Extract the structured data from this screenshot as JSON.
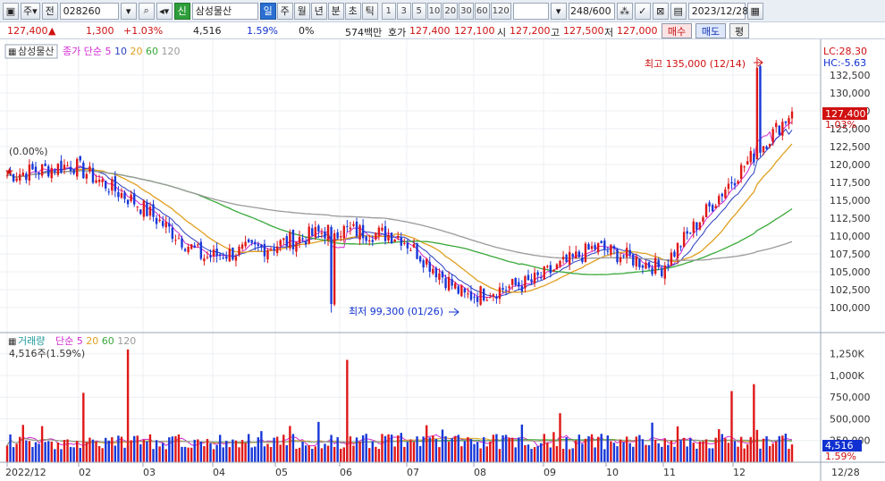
{
  "toolbar": {
    "chart_type": "주",
    "prev_label": "전",
    "stock_code": "028260",
    "new_badge": "신",
    "stock_name": "삼성물산",
    "periods": [
      "일",
      "주",
      "월",
      "년",
      "분",
      "초",
      "틱"
    ],
    "active_period": "일",
    "intervals": [
      "1",
      "3",
      "5",
      "10",
      "20",
      "30",
      "60",
      "120"
    ],
    "count": "248/600",
    "date": "2023/12/28"
  },
  "quote": {
    "price": "127,400",
    "change": "1,300",
    "change_pct": "+1.03%",
    "volume": "4,516",
    "volume_pct": "1.59%",
    "zero_pct": "0%",
    "trade_value": "574백만",
    "bid_label": "호가",
    "bid1": "127,400",
    "bid2": "127,100",
    "open_label": "시",
    "open": "127,200",
    "high_label": "고",
    "high": "127,500",
    "low_label": "저",
    "low": "127,000",
    "buy_label": "매수",
    "sell_label": "매도",
    "eval_label": "평"
  },
  "price_panel": {
    "name_tag": "삼성물산",
    "legend_prefix": "종가 단순",
    "ma_periods": [
      "5",
      "10",
      "20",
      "60",
      "120"
    ],
    "ma_colors": [
      "#d02bd0",
      "#2a3fc0",
      "#e0a020",
      "#38a838",
      "#9a9a9a"
    ],
    "start_marker": "(0.00%)",
    "high_annotation": "최고 135,000 (12/14)",
    "low_annotation": "최저 99,300 (01/26)",
    "lc": "LC:28.30",
    "hc": "HC:-5.63",
    "last_price": "127,400",
    "last_pct": "1.03%",
    "y_ticks": [
      "132,500",
      "130,000",
      "127,500",
      "125,000",
      "122,500",
      "120,000",
      "117,500",
      "115,000",
      "112,500",
      "110,000",
      "107,500",
      "105,000",
      "102,500",
      "100,000"
    ]
  },
  "volume_panel": {
    "title": "거래량",
    "legend_prefix": "단순",
    "ma_periods": [
      "5",
      "20",
      "60",
      "120"
    ],
    "ma_colors": [
      "#d02bd0",
      "#e0a020",
      "#38a838",
      "#9a9a9a"
    ],
    "current": "4,516주(1.59%)",
    "last_volume": "4,516",
    "last_pct": "1.59%",
    "y_ticks": [
      "1,250K",
      "1,000K",
      "750,000",
      "500,000",
      "250,000"
    ]
  },
  "x_axis": {
    "labels": [
      "2022/12",
      "02",
      "03",
      "04",
      "05",
      "06",
      "07",
      "08",
      "09",
      "10",
      "11",
      "12"
    ],
    "right_label": "12/28"
  },
  "chart_data": {
    "type": "candlestick",
    "monthly_close": [
      {
        "month": "2022/12",
        "close": 118500
      },
      {
        "month": "01",
        "close": 120000
      },
      {
        "month": "02",
        "close": 114500
      },
      {
        "month": "03",
        "close": 107000
      },
      {
        "month": "04",
        "close": 108500
      },
      {
        "month": "05",
        "close": 111000
      },
      {
        "month": "06",
        "close": 110000
      },
      {
        "month": "07",
        "close": 101500
      },
      {
        "month": "08",
        "close": 103500
      },
      {
        "month": "09",
        "close": 108500
      },
      {
        "month": "10",
        "close": 105500
      },
      {
        "month": "11",
        "close": 117000
      },
      {
        "month": "12",
        "close": 127400
      }
    ],
    "period_high": {
      "date": "12/14",
      "value": 135000
    },
    "period_low": {
      "date": "01/26",
      "value": 99300
    },
    "price_range": [
      97500,
      135000
    ],
    "volume_range": [
      0,
      1350000
    ],
    "volume_spikes": [
      {
        "month": "02",
        "value": 1300000
      },
      {
        "month": "06",
        "value": 1180000
      },
      {
        "month": "12",
        "value": 900000
      },
      {
        "month": "11",
        "value": 820000
      },
      {
        "month": "02",
        "value": 800000
      }
    ]
  }
}
